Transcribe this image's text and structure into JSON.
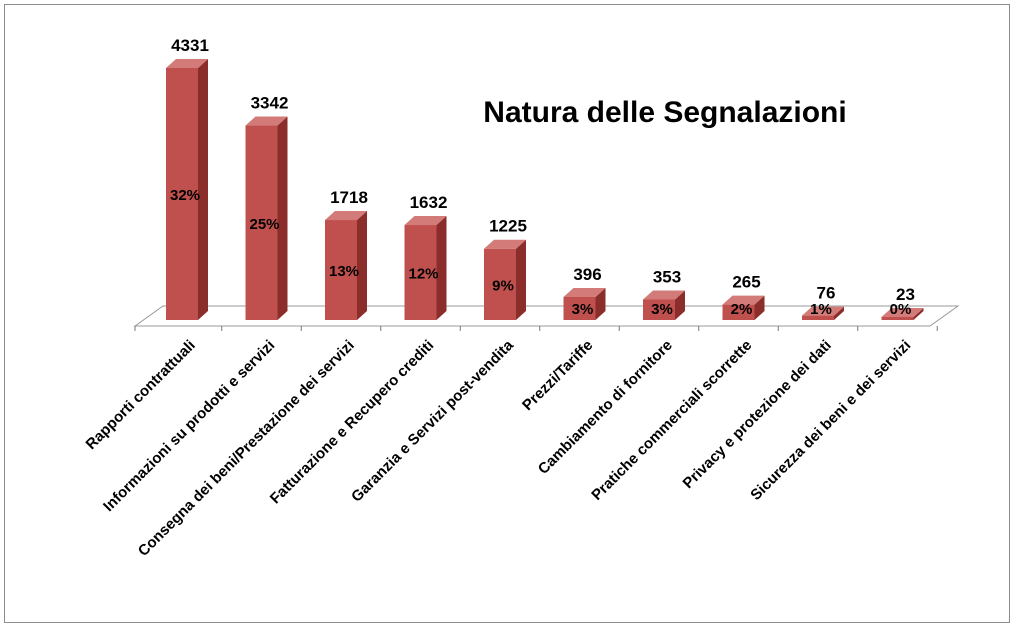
{
  "chart_data": {
    "type": "bar",
    "title": "Natura delle Segnalazioni",
    "xlabel": "",
    "ylabel": "",
    "categories": [
      "Rapporti contrattuali",
      "Informazioni su prodotti e servizi",
      "Consegna dei beni/Prestazione dei servizi",
      "Fatturazione e Recupero crediti",
      "Garanzia e Servizi post-vendita",
      "Prezzi/Tariffe",
      "Cambiamento di fornitore",
      "Pratiche commerciali scorrette",
      "Privacy e protezione dei dati",
      "Sicurezza dei beni e dei servizi"
    ],
    "values": [
      4331,
      3342,
      1718,
      1632,
      1225,
      396,
      353,
      265,
      76,
      23
    ],
    "percent_labels": [
      "32%",
      "25%",
      "13%",
      "12%",
      "9%",
      "3%",
      "3%",
      "2%",
      "1%",
      "0%"
    ],
    "ylim": [
      0,
      4331
    ],
    "grid": false,
    "legend": "none",
    "colors": {
      "bar_front": "#c0504d",
      "bar_side": "#8b2d2a",
      "bar_top": "#d27b78",
      "floor": "#ffffff",
      "floor_edge": "#999999"
    }
  }
}
